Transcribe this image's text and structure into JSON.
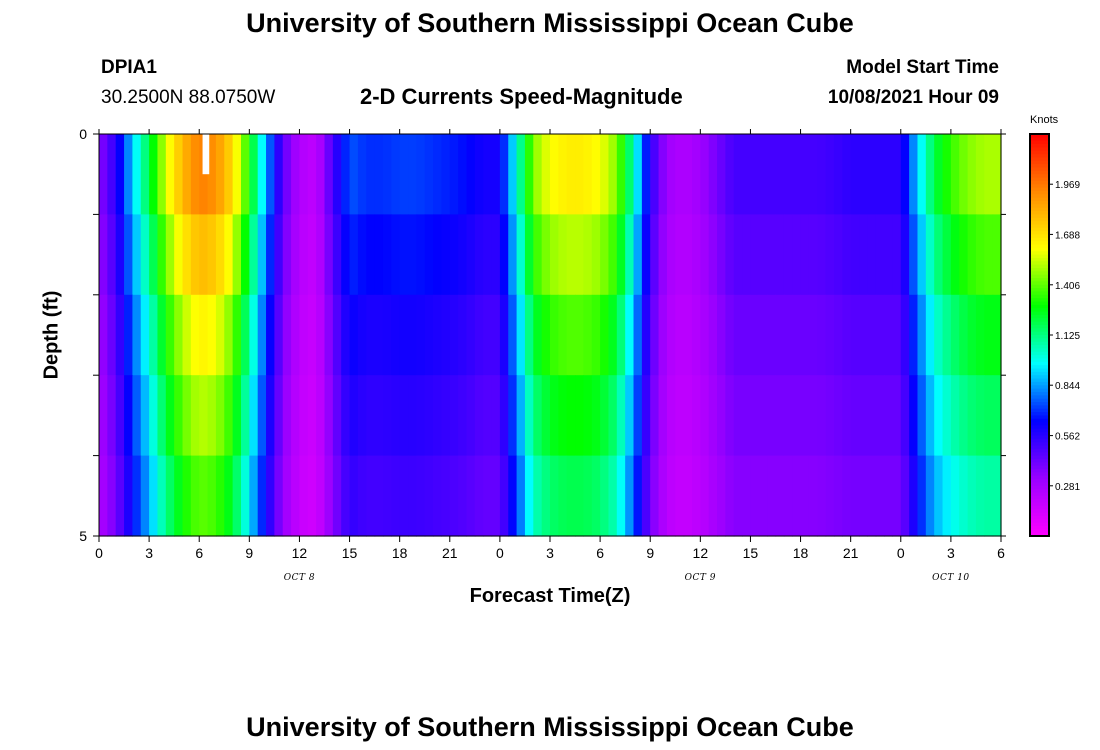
{
  "page_title": "University of Southern Mississippi Ocean Cube",
  "page_footer": "University of Southern Mississippi Ocean Cube",
  "station": {
    "id": "DPIA1",
    "coords": "30.2500N  88.0750W"
  },
  "plot_title": "2-D Currents Speed-Magnitude",
  "model": {
    "label": "Model Start Time",
    "time": "10/08/2021 Hour 09"
  },
  "chart_data": {
    "type": "heatmap",
    "title": "2-D Currents Speed-Magnitude",
    "xlabel": "Forecast Time(Z)",
    "ylabel": "Depth (ft)",
    "x_hours_range": [
      0,
      54
    ],
    "x_tick_step_hours": 3,
    "x_tick_labels": [
      "0",
      "3",
      "6",
      "9",
      "12",
      "15",
      "18",
      "21",
      "0",
      "3",
      "6",
      "9",
      "12",
      "15",
      "18",
      "21",
      "0",
      "3",
      "6"
    ],
    "day_labels": [
      {
        "text": "OCT 8",
        "hour": 12
      },
      {
        "text": "OCT 9",
        "hour": 36
      },
      {
        "text": "OCT 10",
        "hour": 51
      }
    ],
    "y_range": [
      0,
      5
    ],
    "y_tick_labels": [
      "0",
      "5"
    ],
    "depth_layers": 5,
    "colorbar": {
      "unit": "Knots",
      "range": [
        0,
        2.25
      ],
      "tick_labels": [
        "1.969",
        "1.688",
        "1.406",
        "1.125",
        "0.844",
        "0.562",
        "0.281"
      ],
      "colors": [
        "#ff00ff",
        "#9900ff",
        "#0000ff",
        "#00ffff",
        "#00ff00",
        "#ffff00",
        "#ff8800",
        "#ff0000"
      ]
    },
    "model": {
      "base_speed_series": [
        [
          0,
          0.35
        ],
        [
          1,
          0.55
        ],
        [
          2,
          0.9
        ],
        [
          3,
          1.2
        ],
        [
          4,
          1.55
        ],
        [
          5,
          1.8
        ],
        [
          6,
          1.95
        ],
        [
          7,
          1.9
        ],
        [
          8,
          1.7
        ],
        [
          9,
          1.3
        ],
        [
          10,
          0.85
        ],
        [
          11,
          0.45
        ],
        [
          12,
          0.25
        ],
        [
          13,
          0.2
        ],
        [
          14,
          0.5
        ],
        [
          15,
          0.75
        ],
        [
          16,
          0.7
        ],
        [
          17,
          0.7
        ],
        [
          18,
          0.72
        ],
        [
          19,
          0.72
        ],
        [
          20,
          0.7
        ],
        [
          21,
          0.68
        ],
        [
          22,
          0.65
        ],
        [
          23,
          0.6
        ],
        [
          24,
          0.6
        ],
        [
          25,
          1.0
        ],
        [
          26,
          1.45
        ],
        [
          27,
          1.6
        ],
        [
          28,
          1.65
        ],
        [
          29,
          1.65
        ],
        [
          30,
          1.6
        ],
        [
          31,
          1.45
        ],
        [
          32,
          1.05
        ],
        [
          33,
          0.55
        ],
        [
          34,
          0.3
        ],
        [
          35,
          0.25
        ],
        [
          36,
          0.3
        ],
        [
          37,
          0.4
        ],
        [
          38,
          0.5
        ],
        [
          39,
          0.5
        ],
        [
          40,
          0.5
        ],
        [
          41,
          0.5
        ],
        [
          42,
          0.5
        ],
        [
          43,
          0.5
        ],
        [
          44,
          0.52
        ],
        [
          45,
          0.55
        ],
        [
          46,
          0.55
        ],
        [
          47,
          0.55
        ],
        [
          48,
          0.55
        ],
        [
          49,
          0.9
        ],
        [
          50,
          1.2
        ],
        [
          51,
          1.35
        ],
        [
          52,
          1.45
        ],
        [
          53,
          1.5
        ],
        [
          54,
          1.5
        ]
      ],
      "layer_factors": [
        1.0,
        0.92,
        0.84,
        0.78,
        0.72
      ],
      "surface_gap_hours": [
        6.2,
        6.6
      ]
    }
  }
}
